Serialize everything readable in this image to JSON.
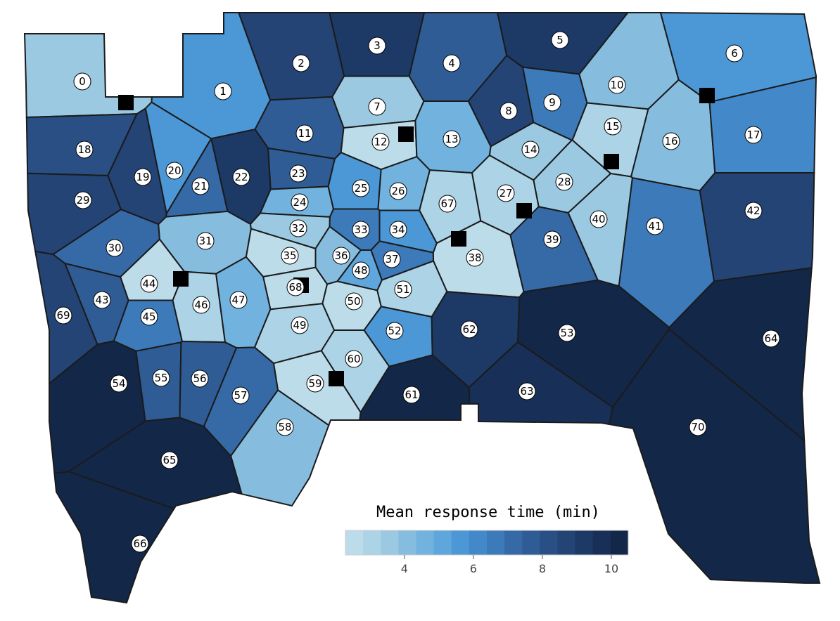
{
  "chart_data": {
    "type": "choropleth",
    "title": "Mean response time (min)",
    "categories": [
      "0",
      "1",
      "2",
      "3",
      "4",
      "5",
      "6",
      "7",
      "8",
      "9",
      "10",
      "11",
      "12",
      "13",
      "14",
      "15",
      "16",
      "17",
      "18",
      "19",
      "20",
      "21",
      "22",
      "23",
      "24",
      "25",
      "26",
      "27",
      "28",
      "29",
      "30",
      "31",
      "32",
      "33",
      "34",
      "35",
      "36",
      "37",
      "38",
      "39",
      "40",
      "41",
      "42",
      "43",
      "44",
      "45",
      "46",
      "47",
      "48",
      "49",
      "50",
      "51",
      "52",
      "53",
      "54",
      "55",
      "56",
      "57",
      "58",
      "59",
      "60",
      "61",
      "62",
      "63",
      "64",
      "65",
      "66",
      "67",
      "68",
      "69",
      "70"
    ],
    "values": [
      3.7,
      5.8,
      8.5,
      9,
      7.5,
      9,
      5.5,
      3.6,
      8.5,
      6.8,
      4,
      7.5,
      2.6,
      4.6,
      3.8,
      3,
      4.2,
      6,
      8,
      8.7,
      5.8,
      7.3,
      9,
      7.5,
      4.8,
      5.8,
      4.4,
      3,
      3.6,
      8.6,
      7.3,
      4.1,
      3.5,
      6.6,
      5.8,
      2.8,
      4.2,
      6.8,
      2.7,
      7.3,
      3.8,
      6.8,
      8.5,
      7.5,
      2.6,
      6.6,
      3.1,
      4.5,
      5,
      3.1,
      2.8,
      3.3,
      5.6,
      10.2,
      10,
      7.8,
      7.5,
      7,
      4,
      2.8,
      3,
      10.3,
      9.4,
      9.8,
      10.4,
      10,
      10.4,
      3.1,
      2.7,
      8.8,
      10.3
    ],
    "colors": [
      "#bcdcea",
      "#acd3e6",
      "#9bc9e1",
      "#86bddf",
      "#71b2de",
      "#5ea6dc",
      "#4c97d6",
      "#4388c9",
      "#3c7aba",
      "#356aa7",
      "#2f5c95",
      "#294f84",
      "#234475",
      "#1d3966",
      "#183058",
      "#132749"
    ],
    "xlim": [
      2.29,
      10.49
    ],
    "xticks": [
      4,
      6,
      8,
      10
    ]
  }
}
